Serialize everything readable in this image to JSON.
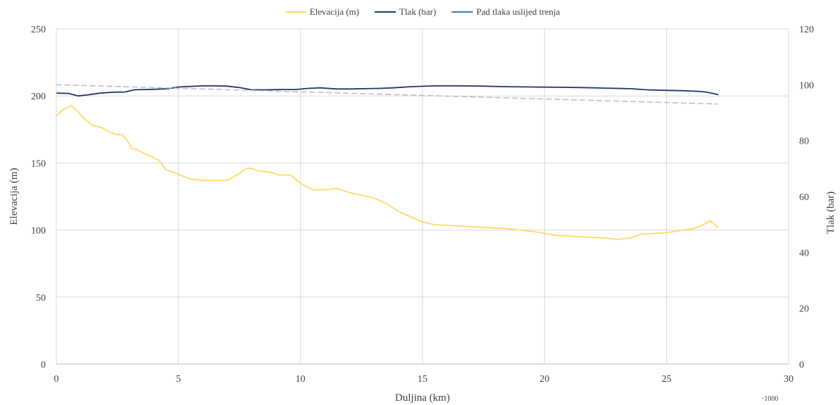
{
  "chart_data": {
    "type": "line",
    "xlabel": "Duljina (km)",
    "x_axis_multiplier": "·1000",
    "ylabel_left": "Elevacija (m)",
    "ylabel_right": "Tlak (bar)",
    "xlim": [
      0,
      30
    ],
    "ylim_left": [
      0,
      250
    ],
    "ylim_right": [
      0,
      120
    ],
    "xticks": [
      0,
      5,
      10,
      15,
      20,
      25,
      30
    ],
    "yticks_left": [
      0,
      50,
      100,
      150,
      200,
      250
    ],
    "yticks_right": [
      0,
      20,
      40,
      60,
      80,
      100,
      120
    ],
    "grid": true,
    "legend_position": "top",
    "series": [
      {
        "name": "Elevacija (m)",
        "axis": "left",
        "color": "#ffd966",
        "dashed": false,
        "points": [
          [
            0,
            185
          ],
          [
            0.3,
            190
          ],
          [
            0.6,
            193
          ],
          [
            0.9,
            188
          ],
          [
            1.2,
            182
          ],
          [
            1.5,
            178
          ],
          [
            1.9,
            176
          ],
          [
            2.2,
            173
          ],
          [
            2.5,
            171
          ],
          [
            2.7,
            171
          ],
          [
            2.9,
            167
          ],
          [
            3.1,
            161
          ],
          [
            3.3,
            160
          ],
          [
            3.6,
            157
          ],
          [
            3.9,
            155
          ],
          [
            4.2,
            152
          ],
          [
            4.5,
            145
          ],
          [
            4.8,
            143
          ],
          [
            5.2,
            140
          ],
          [
            5.5,
            138
          ],
          [
            6.0,
            137
          ],
          [
            6.5,
            137
          ],
          [
            7.0,
            137
          ],
          [
            7.4,
            141
          ],
          [
            7.8,
            146
          ],
          [
            8.0,
            146
          ],
          [
            8.3,
            144
          ],
          [
            8.8,
            143
          ],
          [
            9.1,
            141
          ],
          [
            9.6,
            141
          ],
          [
            10.0,
            135
          ],
          [
            10.5,
            130
          ],
          [
            11.0,
            130
          ],
          [
            11.5,
            131
          ],
          [
            12.0,
            128
          ],
          [
            12.5,
            126
          ],
          [
            13.0,
            124
          ],
          [
            13.5,
            120
          ],
          [
            14.0,
            114
          ],
          [
            14.5,
            110
          ],
          [
            15.0,
            106
          ],
          [
            15.5,
            104
          ],
          [
            16.5,
            103
          ],
          [
            17.5,
            102
          ],
          [
            18.5,
            101
          ],
          [
            19.5,
            99
          ],
          [
            20.5,
            96
          ],
          [
            21.5,
            95
          ],
          [
            22.5,
            94
          ],
          [
            23.0,
            93
          ],
          [
            23.5,
            94
          ],
          [
            24.0,
            97
          ],
          [
            25.0,
            98
          ],
          [
            25.7,
            100
          ],
          [
            26.1,
            101
          ],
          [
            26.4,
            103
          ],
          [
            26.8,
            107
          ],
          [
            27.1,
            102
          ]
        ]
      },
      {
        "name": "Tlak (bar)",
        "axis": "right",
        "color": "#203864",
        "dashed": false,
        "points": [
          [
            0,
            97
          ],
          [
            0.5,
            96.9
          ],
          [
            0.9,
            96
          ],
          [
            1.3,
            96.4
          ],
          [
            1.8,
            97
          ],
          [
            2.3,
            97.3
          ],
          [
            2.8,
            97.4
          ],
          [
            3.2,
            98.2
          ],
          [
            3.6,
            98.3
          ],
          [
            4.1,
            98.4
          ],
          [
            4.6,
            98.6
          ],
          [
            5.0,
            99.2
          ],
          [
            5.5,
            99.4
          ],
          [
            6.0,
            99.6
          ],
          [
            6.5,
            99.6
          ],
          [
            7.0,
            99.5
          ],
          [
            7.5,
            99
          ],
          [
            8.0,
            98.2
          ],
          [
            8.6,
            98.2
          ],
          [
            9.2,
            98.3
          ],
          [
            9.8,
            98.3
          ],
          [
            10.3,
            98.7
          ],
          [
            10.8,
            98.9
          ],
          [
            11.5,
            98.5
          ],
          [
            12.0,
            98.5
          ],
          [
            12.6,
            98.6
          ],
          [
            13.2,
            98.7
          ],
          [
            13.8,
            98.9
          ],
          [
            14.5,
            99.3
          ],
          [
            15.5,
            99.6
          ],
          [
            16.5,
            99.6
          ],
          [
            17.5,
            99.5
          ],
          [
            18.5,
            99.3
          ],
          [
            19.5,
            99.2
          ],
          [
            20.5,
            99.1
          ],
          [
            21.5,
            99
          ],
          [
            22.5,
            98.8
          ],
          [
            23.5,
            98.6
          ],
          [
            24.2,
            98.2
          ],
          [
            25.0,
            98.0
          ],
          [
            25.6,
            97.9
          ],
          [
            26.2,
            97.7
          ],
          [
            26.6,
            97.4
          ],
          [
            26.9,
            96.9
          ],
          [
            27.1,
            96.5
          ]
        ]
      },
      {
        "name": "Pad tlaka uslijed trenja",
        "axis": "right",
        "color": "#4472c4",
        "dashed": false,
        "points": []
      },
      {
        "name": "",
        "axis": "right",
        "color": "#bfbfbf",
        "dashed": true,
        "points": [
          [
            0,
            100
          ],
          [
            27.1,
            93.1
          ]
        ]
      }
    ]
  }
}
